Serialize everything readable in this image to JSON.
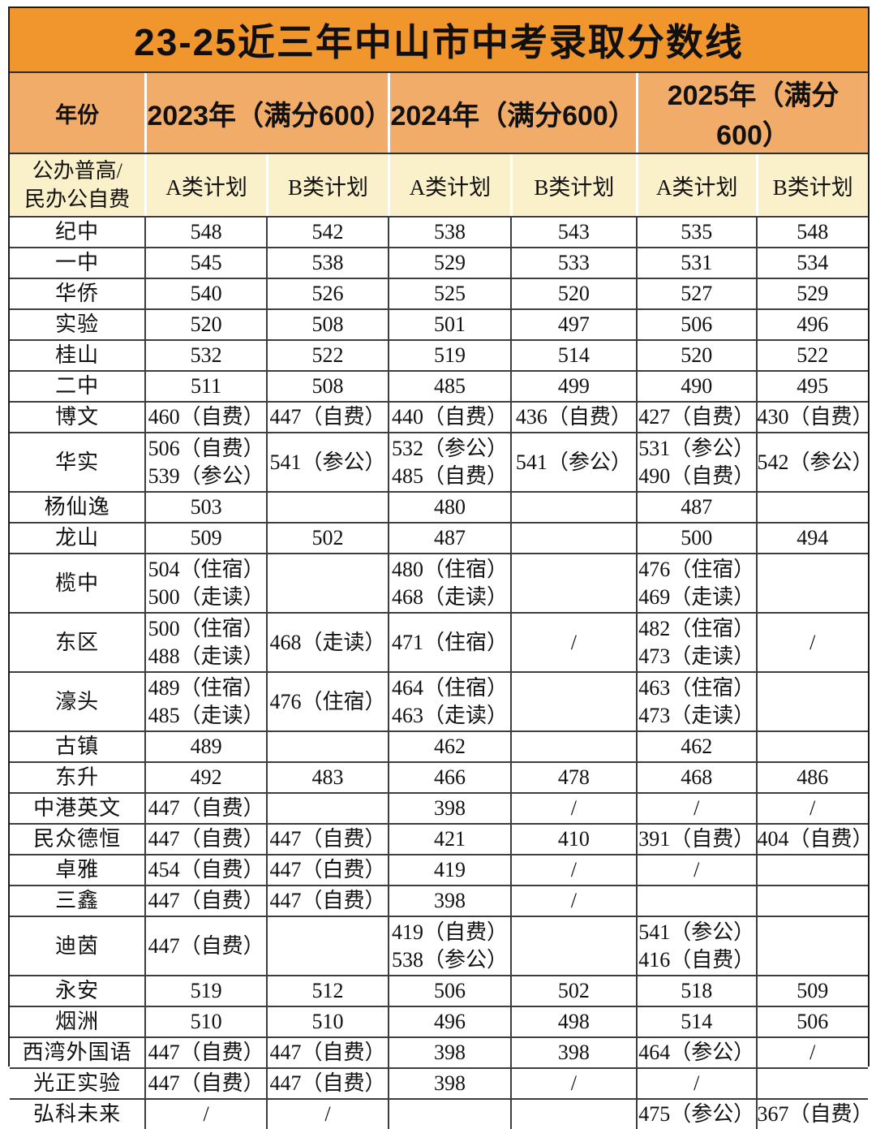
{
  "title": "23-25近三年中山市中考录取分数线",
  "colors": {
    "title-bg": "#F0962D",
    "year-bg": "#F2AC69",
    "subhead-bg": "#FAF0CA",
    "body-bg": "#FFFFFF",
    "grid-line": "#3D3D3D"
  },
  "header": {
    "year_label": "年份",
    "years": [
      "2023年（满分600）",
      "2024年（满分600）",
      "2025年（满分600）"
    ],
    "category_label": "公办普高/\n民办公自费",
    "plan_cells": [
      "A类计划",
      "B类计划",
      "A类计划",
      "B类计划",
      "A类计划",
      "B类计划"
    ]
  },
  "table": {
    "rows": [
      {
        "school": "纪中",
        "values": [
          "548",
          "542",
          "538",
          "543",
          "535",
          "548"
        ],
        "tall": false
      },
      {
        "school": "一中",
        "values": [
          "545",
          "538",
          "529",
          "533",
          "531",
          "534"
        ],
        "tall": false
      },
      {
        "school": "华侨",
        "values": [
          "540",
          "526",
          "525",
          "520",
          "527",
          "529"
        ],
        "tall": false
      },
      {
        "school": "实验",
        "values": [
          "520",
          "508",
          "501",
          "497",
          "506",
          "496"
        ],
        "tall": false
      },
      {
        "school": "桂山",
        "values": [
          "532",
          "522",
          "519",
          "514",
          "520",
          "522"
        ],
        "tall": false
      },
      {
        "school": "二中",
        "values": [
          "511",
          "508",
          "485",
          "499",
          "490",
          "495"
        ],
        "tall": false
      },
      {
        "school": "博文",
        "values": [
          "460（自费）",
          "447（自费）",
          "440（自费）",
          "436（自费）",
          "427（自费）",
          "430（自费）"
        ],
        "tall": false
      },
      {
        "school": "华实",
        "values": [
          "506（自费）\n539（参公）",
          "541（参公）",
          "532（参公）\n485（自费）",
          "541（参公）",
          "531（参公）\n490（自费）",
          "542（参公）"
        ],
        "tall": true
      },
      {
        "school": "杨仙逸",
        "values": [
          "503",
          "",
          "480",
          "",
          "487",
          ""
        ],
        "tall": false
      },
      {
        "school": "龙山",
        "values": [
          "509",
          "502",
          "487",
          "",
          "500",
          "494"
        ],
        "tall": false
      },
      {
        "school": "榄中",
        "values": [
          "504（住宿）\n500（走读）",
          "",
          "480（住宿）\n468（走读）",
          "",
          "476（住宿）\n469（走读）",
          ""
        ],
        "tall": true
      },
      {
        "school": "东区",
        "values": [
          "500（住宿）\n488（走读）",
          "468（走读）",
          "471（住宿）",
          "/",
          "482（住宿）\n473（走读）",
          "/"
        ],
        "tall": true
      },
      {
        "school": "濠头",
        "values": [
          "489（住宿）\n485（走读）",
          "476（住宿）",
          "464（住宿）\n463（走读）",
          "",
          "463（住宿）\n473（走读）",
          ""
        ],
        "tall": true
      },
      {
        "school": "古镇",
        "values": [
          "489",
          "",
          "462",
          "",
          "462",
          ""
        ],
        "tall": false
      },
      {
        "school": "东升",
        "values": [
          "492",
          "483",
          "466",
          "478",
          "468",
          "486"
        ],
        "tall": false
      },
      {
        "school": "中港英文",
        "values": [
          "447（自费）",
          "",
          "398",
          "/",
          "/",
          "/"
        ],
        "tall": false
      },
      {
        "school": "民众德恒",
        "values": [
          "447（自费）",
          "447（自费）",
          "421",
          "410",
          "391（自费）",
          "404（自费）"
        ],
        "tall": false
      },
      {
        "school": "卓雅",
        "values": [
          "454（自费）",
          "447（白费）",
          "419",
          "/",
          "/",
          ""
        ],
        "tall": false
      },
      {
        "school": "三鑫",
        "values": [
          "447（自费）",
          "447（自费）",
          "398",
          "/",
          "",
          ""
        ],
        "tall": false
      },
      {
        "school": "迪茵",
        "values": [
          "447（自费）",
          "",
          "419（自费）\n538（参公）",
          "",
          "541（参公）\n416（自费）",
          ""
        ],
        "tall": true
      },
      {
        "school": "永安",
        "values": [
          "519",
          "512",
          "506",
          "502",
          "518",
          "509"
        ],
        "tall": false
      },
      {
        "school": "烟洲",
        "values": [
          "510",
          "510",
          "496",
          "498",
          "514",
          "506"
        ],
        "tall": false
      },
      {
        "school": "西湾外国语",
        "values": [
          "447（自费）",
          "447（自费）",
          "398",
          "398",
          "464（参公）",
          "/"
        ],
        "tall": false
      },
      {
        "school": "光正实验",
        "values": [
          "447（自费）",
          "447（自费）",
          "398",
          "/",
          "/",
          ""
        ],
        "tall": false
      },
      {
        "school": "弘科未来",
        "values": [
          "/",
          "/",
          "",
          "",
          "475（参公）",
          "367（自费）"
        ],
        "tall": false
      }
    ]
  },
  "chart_data": {
    "type": "table",
    "title": "23-25近三年中山市中考录取分数线",
    "columns": [
      "公办普高/民办公自费",
      "2023年A类计划",
      "2023年B类计划",
      "2024年A类计划",
      "2024年B类计划",
      "2025年A类计划",
      "2025年B类计划"
    ],
    "column_groups": [
      {
        "label": "2023年（满分600）",
        "span": [
          "A类计划",
          "B类计划"
        ]
      },
      {
        "label": "2024年（满分600）",
        "span": [
          "A类计划",
          "B类计划"
        ]
      },
      {
        "label": "2025年（满分600）",
        "span": [
          "A类计划",
          "B类计划"
        ]
      }
    ],
    "rows": [
      [
        "纪中",
        "548",
        "542",
        "538",
        "543",
        "535",
        "548"
      ],
      [
        "一中",
        "545",
        "538",
        "529",
        "533",
        "531",
        "534"
      ],
      [
        "华侨",
        "540",
        "526",
        "525",
        "520",
        "527",
        "529"
      ],
      [
        "实验",
        "520",
        "508",
        "501",
        "497",
        "506",
        "496"
      ],
      [
        "桂山",
        "532",
        "522",
        "519",
        "514",
        "520",
        "522"
      ],
      [
        "二中",
        "511",
        "508",
        "485",
        "499",
        "490",
        "495"
      ],
      [
        "博文",
        "460（自费）",
        "447（自费）",
        "440（自费）",
        "436（自费）",
        "427（自费）",
        "430（自费）"
      ],
      [
        "华实",
        "506（自费）539（参公）",
        "541（参公）",
        "532（参公）485（自费）",
        "541（参公）",
        "531（参公）490（自费）",
        "542（参公）"
      ],
      [
        "杨仙逸",
        "503",
        "",
        "480",
        "",
        "487",
        ""
      ],
      [
        "龙山",
        "509",
        "502",
        "487",
        "",
        "500",
        "494"
      ],
      [
        "榄中",
        "504（住宿）500（走读）",
        "",
        "480（住宿）468（走读）",
        "",
        "476（住宿）469（走读）",
        ""
      ],
      [
        "东区",
        "500（住宿）488（走读）",
        "468（走读）",
        "471（住宿）",
        "/",
        "482（住宿）473（走读）",
        "/"
      ],
      [
        "濠头",
        "489（住宿）485（走读）",
        "476（住宿）",
        "464（住宿）463（走读）",
        "",
        "463（住宿）473（走读）",
        ""
      ],
      [
        "古镇",
        "489",
        "",
        "462",
        "",
        "462",
        ""
      ],
      [
        "东升",
        "492",
        "483",
        "466",
        "478",
        "468",
        "486"
      ],
      [
        "中港英文",
        "447（自费）",
        "",
        "398",
        "/",
        "/",
        "/"
      ],
      [
        "民众德恒",
        "447（自费）",
        "447（自费）",
        "421",
        "410",
        "391（自费）",
        "404（自费）"
      ],
      [
        "卓雅",
        "454（自费）",
        "447（白费）",
        "419",
        "/",
        "/",
        ""
      ],
      [
        "三鑫",
        "447（自费）",
        "447（自费）",
        "398",
        "/",
        "",
        ""
      ],
      [
        "迪茵",
        "447（自费）",
        "",
        "419（自费）538（参公）",
        "",
        "541（参公）416（自费）",
        ""
      ],
      [
        "永安",
        "519",
        "512",
        "506",
        "502",
        "518",
        "509"
      ],
      [
        "烟洲",
        "510",
        "510",
        "496",
        "498",
        "514",
        "506"
      ],
      [
        "西湾外国语",
        "447（自费）",
        "447（自费）",
        "398",
        "398",
        "464（参公）",
        "/"
      ],
      [
        "光正实验",
        "447（自费）",
        "447（自费）",
        "398",
        "/",
        "/",
        ""
      ],
      [
        "弘科未来",
        "/",
        "/",
        "",
        "",
        "475（参公）",
        "367（自费）"
      ]
    ]
  }
}
